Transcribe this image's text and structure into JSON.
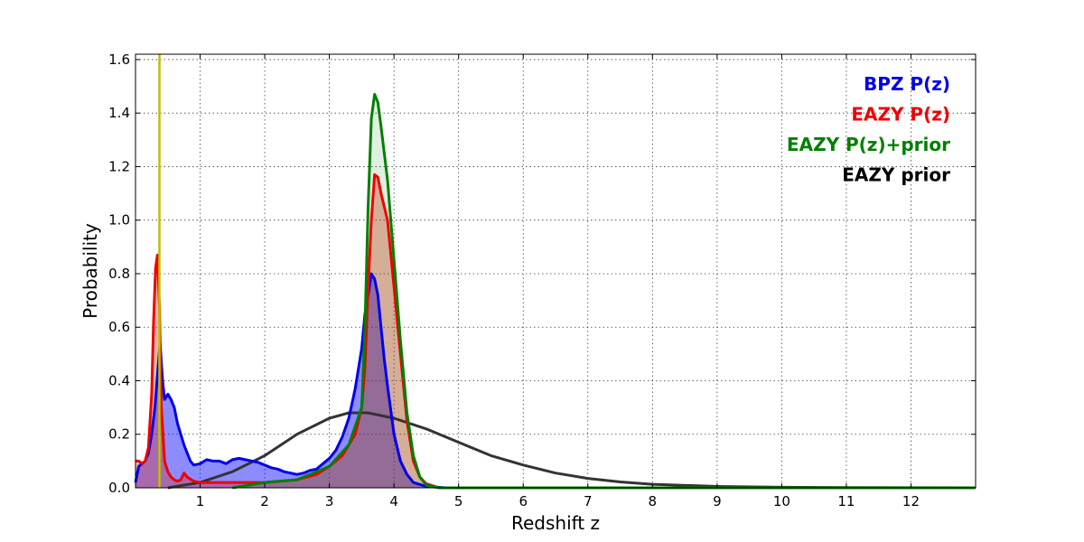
{
  "chart_data": {
    "type": "area",
    "xlabel": "Redshift z",
    "ylabel": "Probability",
    "xlim": [
      0,
      13
    ],
    "ylim": [
      0,
      1.62
    ],
    "x_ticks": [
      1,
      2,
      3,
      4,
      5,
      6,
      7,
      8,
      9,
      10,
      11,
      12
    ],
    "y_ticks": [
      0.0,
      0.2,
      0.4,
      0.6,
      0.8,
      1.0,
      1.2,
      1.4,
      1.6
    ],
    "x_tick_labels": [
      "1",
      "2",
      "3",
      "4",
      "5",
      "6",
      "7",
      "8",
      "9",
      "10",
      "11",
      "12"
    ],
    "y_tick_labels": [
      "0.0",
      "0.2",
      "0.4",
      "0.6",
      "0.8",
      "1.0",
      "1.2",
      "1.4",
      "1.6"
    ],
    "grid": true,
    "legend_position": "top-right",
    "vertical_line": {
      "x": 0.37,
      "color": "#bfbf00"
    },
    "series": [
      {
        "name": "EAZY prior",
        "color": "#333333",
        "fill": false,
        "points": [
          [
            0.5,
            0.0
          ],
          [
            1.0,
            0.02
          ],
          [
            1.5,
            0.06
          ],
          [
            2.0,
            0.12
          ],
          [
            2.5,
            0.2
          ],
          [
            3.0,
            0.26
          ],
          [
            3.3,
            0.28
          ],
          [
            3.6,
            0.28
          ],
          [
            4.0,
            0.26
          ],
          [
            4.5,
            0.22
          ],
          [
            5.0,
            0.17
          ],
          [
            5.5,
            0.12
          ],
          [
            6.0,
            0.085
          ],
          [
            6.5,
            0.055
          ],
          [
            7.0,
            0.035
          ],
          [
            7.5,
            0.022
          ],
          [
            8.0,
            0.013
          ],
          [
            9.0,
            0.005
          ],
          [
            10.0,
            0.002
          ],
          [
            11.0,
            0.0008
          ],
          [
            12.0,
            0.0002
          ],
          [
            13.0,
            0.0
          ]
        ]
      },
      {
        "name": "BPZ P(z)",
        "color": "#0000ee",
        "fill": true,
        "fill_color": "rgba(0,0,255,0.45)",
        "points": [
          [
            0.0,
            0.02
          ],
          [
            0.05,
            0.08
          ],
          [
            0.1,
            0.09
          ],
          [
            0.15,
            0.1
          ],
          [
            0.2,
            0.13
          ],
          [
            0.25,
            0.2
          ],
          [
            0.3,
            0.3
          ],
          [
            0.35,
            0.45
          ],
          [
            0.38,
            0.54
          ],
          [
            0.42,
            0.4
          ],
          [
            0.45,
            0.33
          ],
          [
            0.5,
            0.35
          ],
          [
            0.55,
            0.33
          ],
          [
            0.6,
            0.3
          ],
          [
            0.65,
            0.24
          ],
          [
            0.7,
            0.2
          ],
          [
            0.75,
            0.16
          ],
          [
            0.8,
            0.13
          ],
          [
            0.85,
            0.1
          ],
          [
            0.9,
            0.085
          ],
          [
            1.0,
            0.09
          ],
          [
            1.1,
            0.105
          ],
          [
            1.2,
            0.1
          ],
          [
            1.3,
            0.1
          ],
          [
            1.4,
            0.09
          ],
          [
            1.5,
            0.105
          ],
          [
            1.6,
            0.11
          ],
          [
            1.7,
            0.105
          ],
          [
            1.8,
            0.1
          ],
          [
            1.9,
            0.095
          ],
          [
            2.0,
            0.085
          ],
          [
            2.1,
            0.075
          ],
          [
            2.2,
            0.07
          ],
          [
            2.3,
            0.06
          ],
          [
            2.4,
            0.055
          ],
          [
            2.5,
            0.05
          ],
          [
            2.6,
            0.055
          ],
          [
            2.7,
            0.065
          ],
          [
            2.8,
            0.07
          ],
          [
            2.9,
            0.09
          ],
          [
            3.0,
            0.11
          ],
          [
            3.1,
            0.14
          ],
          [
            3.2,
            0.19
          ],
          [
            3.3,
            0.26
          ],
          [
            3.4,
            0.37
          ],
          [
            3.5,
            0.52
          ],
          [
            3.55,
            0.65
          ],
          [
            3.6,
            0.72
          ],
          [
            3.65,
            0.8
          ],
          [
            3.7,
            0.78
          ],
          [
            3.75,
            0.72
          ],
          [
            3.8,
            0.6
          ],
          [
            3.85,
            0.48
          ],
          [
            3.9,
            0.38
          ],
          [
            4.0,
            0.2
          ],
          [
            4.1,
            0.1
          ],
          [
            4.2,
            0.05
          ],
          [
            4.3,
            0.02
          ],
          [
            4.5,
            0.005
          ],
          [
            4.8,
            0.0
          ],
          [
            13.0,
            0.0
          ]
        ]
      },
      {
        "name": "EAZY P(z)",
        "color": "#ee0000",
        "fill": true,
        "fill_color": "rgba(220,40,20,0.35)",
        "points": [
          [
            0.0,
            0.1
          ],
          [
            0.05,
            0.1
          ],
          [
            0.1,
            0.09
          ],
          [
            0.15,
            0.1
          ],
          [
            0.2,
            0.15
          ],
          [
            0.25,
            0.35
          ],
          [
            0.28,
            0.62
          ],
          [
            0.31,
            0.82
          ],
          [
            0.34,
            0.87
          ],
          [
            0.37,
            0.68
          ],
          [
            0.4,
            0.3
          ],
          [
            0.45,
            0.1
          ],
          [
            0.5,
            0.06
          ],
          [
            0.55,
            0.04
          ],
          [
            0.6,
            0.03
          ],
          [
            0.65,
            0.025
          ],
          [
            0.7,
            0.03
          ],
          [
            0.75,
            0.055
          ],
          [
            0.8,
            0.04
          ],
          [
            0.9,
            0.025
          ],
          [
            1.0,
            0.02
          ],
          [
            1.2,
            0.02
          ],
          [
            1.5,
            0.02
          ],
          [
            2.0,
            0.02
          ],
          [
            2.5,
            0.03
          ],
          [
            2.8,
            0.05
          ],
          [
            3.0,
            0.08
          ],
          [
            3.2,
            0.12
          ],
          [
            3.4,
            0.2
          ],
          [
            3.5,
            0.3
          ],
          [
            3.55,
            0.45
          ],
          [
            3.6,
            0.75
          ],
          [
            3.65,
            1.0
          ],
          [
            3.7,
            1.17
          ],
          [
            3.75,
            1.16
          ],
          [
            3.8,
            1.1
          ],
          [
            3.9,
            1.0
          ],
          [
            4.0,
            0.75
          ],
          [
            4.1,
            0.5
          ],
          [
            4.2,
            0.25
          ],
          [
            4.3,
            0.1
          ],
          [
            4.4,
            0.04
          ],
          [
            4.5,
            0.015
          ],
          [
            4.7,
            0.0
          ],
          [
            13.0,
            0.0
          ]
        ]
      },
      {
        "name": "EAZY P(z)+prior",
        "color": "#008000",
        "fill": true,
        "fill_color": "rgba(0,128,0,0.12)",
        "points": [
          [
            1.5,
            0.0
          ],
          [
            2.0,
            0.02
          ],
          [
            2.5,
            0.03
          ],
          [
            3.0,
            0.08
          ],
          [
            3.3,
            0.16
          ],
          [
            3.5,
            0.3
          ],
          [
            3.55,
            0.6
          ],
          [
            3.6,
            1.05
          ],
          [
            3.65,
            1.38
          ],
          [
            3.7,
            1.47
          ],
          [
            3.75,
            1.44
          ],
          [
            3.8,
            1.35
          ],
          [
            3.9,
            1.15
          ],
          [
            4.0,
            0.85
          ],
          [
            4.1,
            0.55
          ],
          [
            4.2,
            0.28
          ],
          [
            4.3,
            0.12
          ],
          [
            4.4,
            0.04
          ],
          [
            4.5,
            0.01
          ],
          [
            4.7,
            0.0
          ],
          [
            13.0,
            0.0
          ]
        ]
      }
    ],
    "legend": [
      {
        "label": "BPZ P(z)",
        "color": "#0000ee"
      },
      {
        "label": "EAZY P(z)",
        "color": "#ee0000"
      },
      {
        "label": "EAZY P(z)+prior",
        "color": "#008000"
      },
      {
        "label": "EAZY prior",
        "color": "#000000"
      }
    ]
  }
}
